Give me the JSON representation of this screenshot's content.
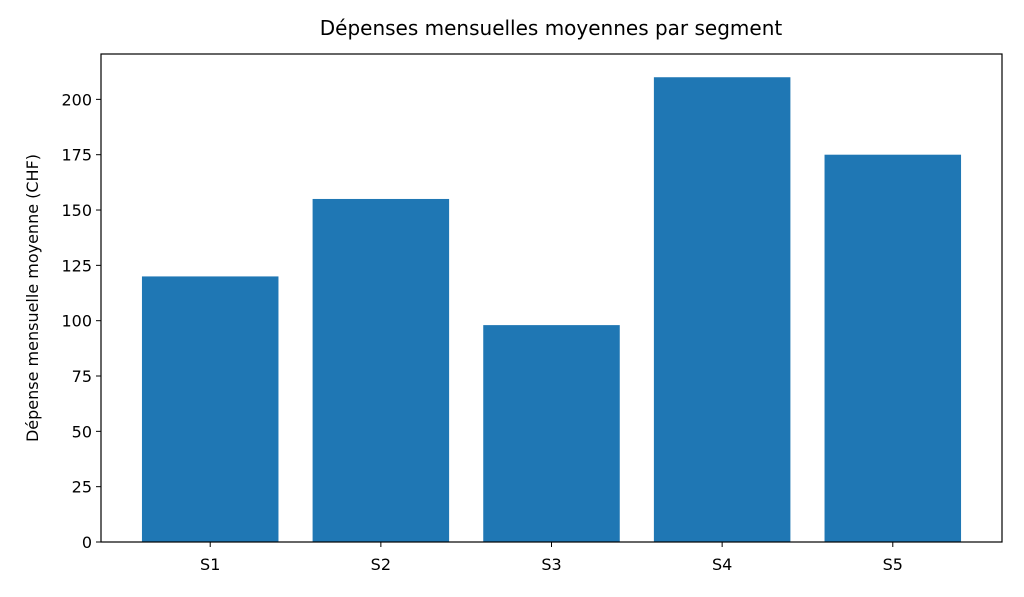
{
  "chart_data": {
    "type": "bar",
    "title": "Dépenses mensuelles moyennes par segment",
    "y_label": "Dépense mensuelle moyenne (CHF)",
    "categories": [
      "S1",
      "S2",
      "S3",
      "S4",
      "S5"
    ],
    "values": [
      120,
      155,
      98,
      210,
      175
    ],
    "color": "#1f77b4",
    "ylim": [
      0,
      220.5
    ],
    "yticks": [
      0,
      25,
      50,
      75,
      100,
      125,
      150,
      175,
      200
    ],
    "grid": false
  }
}
